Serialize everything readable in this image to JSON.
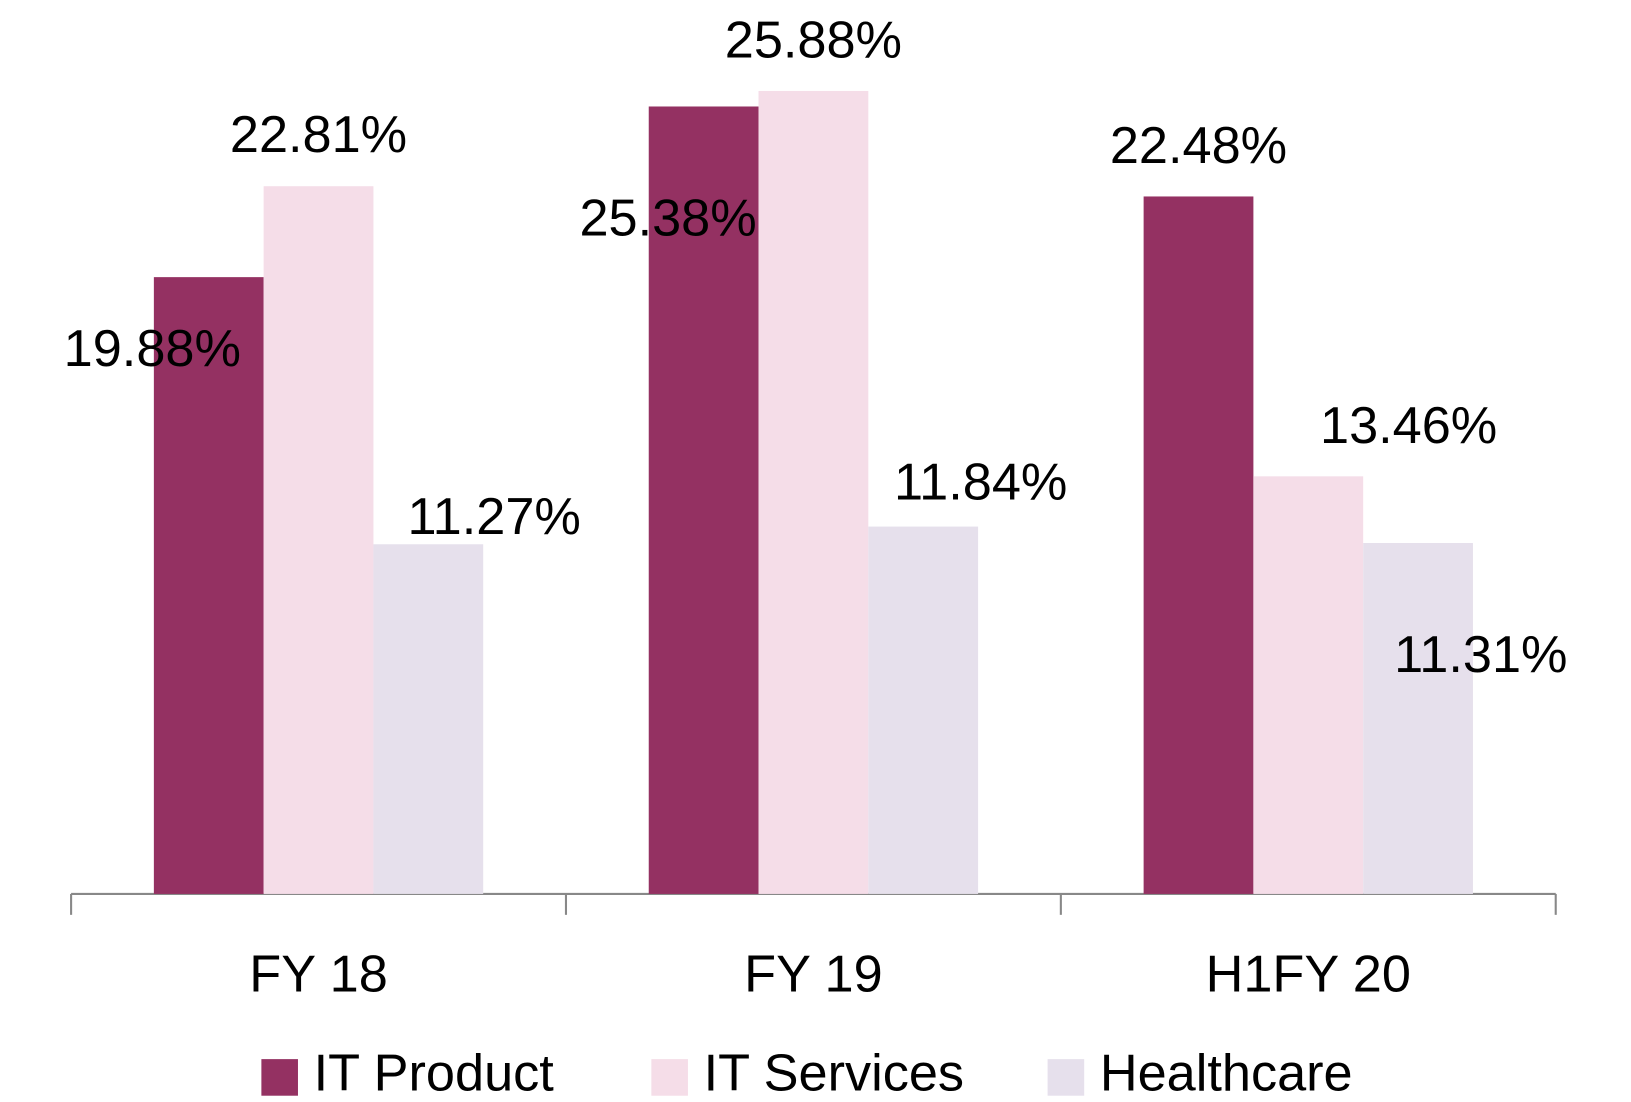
{
  "chart_data": {
    "type": "bar",
    "categories": [
      "FY 18",
      "FY 19",
      "H1FY 20"
    ],
    "series": [
      {
        "name": "IT Product",
        "color": "#943162",
        "values": [
          19.88,
          25.38,
          22.48
        ],
        "value_labels": [
          "19.88%",
          "25.38%",
          "22.48%"
        ]
      },
      {
        "name": "IT Services",
        "color": "#f5dde8",
        "values": [
          22.81,
          25.88,
          13.46
        ],
        "value_labels": [
          "22.81%",
          "25.88%",
          "13.46%"
        ]
      },
      {
        "name": "Healthcare",
        "color": "#e6e0ec",
        "values": [
          11.27,
          11.84,
          11.31
        ],
        "value_labels": [
          "11.27%",
          "11.84%",
          "11.31%"
        ]
      }
    ],
    "legend": "bottom"
  }
}
